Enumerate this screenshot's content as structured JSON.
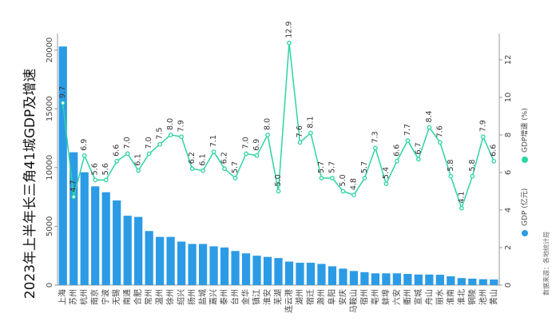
{
  "chart_data": {
    "type": "bar",
    "title": "2023年上半年长三角41城GDP及增速",
    "source": "数据来源：各地统计局",
    "categories": [
      "上海",
      "苏州",
      "杭州",
      "南京",
      "宁波",
      "无锡",
      "南通",
      "合肥",
      "常州",
      "温州",
      "徐州",
      "绍兴",
      "扬州",
      "盐城",
      "嘉兴",
      "泰州",
      "台州",
      "金华",
      "镇江",
      "淮安",
      "芜湖",
      "连云港",
      "湖州",
      "宿迁",
      "滁州",
      "阜阳",
      "安庆",
      "马鞍山",
      "宿州",
      "亳州",
      "蚌埠",
      "六安",
      "衢州",
      "宣城",
      "舟山",
      "丽水",
      "淮南",
      "淮北",
      "铜陵",
      "池州",
      "黄山"
    ],
    "series": [
      {
        "name": "GDP (亿元)",
        "color": "#2c9be6",
        "values": [
          20300,
          11300,
          9600,
          8400,
          7900,
          7200,
          5900,
          5800,
          4600,
          4100,
          4100,
          3700,
          3500,
          3500,
          3300,
          3200,
          2900,
          2700,
          2500,
          2400,
          2300,
          2000,
          1900,
          1900,
          1800,
          1600,
          1400,
          1200,
          1100,
          1000,
          1000,
          1000,
          950,
          900,
          900,
          880,
          750,
          600,
          550,
          500,
          480
        ]
      },
      {
        "name": "GDP增速 (%)",
        "color": "#2ed4a3",
        "type": "line",
        "axis": "y2",
        "values": [
          9.7,
          4.7,
          6.9,
          5.6,
          5.6,
          6.6,
          7.0,
          6.1,
          7.0,
          7.5,
          8.0,
          7.9,
          6.2,
          6.1,
          7.1,
          6.2,
          5.7,
          7.0,
          6.9,
          8.0,
          5.0,
          12.9,
          7.6,
          8.1,
          5.7,
          5.7,
          5.0,
          4.8,
          5.7,
          7.3,
          5.4,
          6.6,
          7.7,
          6.7,
          8.4,
          7.6,
          5.8,
          4.1,
          5.8,
          7.9,
          6.6
        ],
        "value_labels": [
          "9.7",
          "4.7",
          "6.9",
          "5.6",
          "5.6",
          "6.6",
          "7.0",
          "6.1",
          "7.0",
          "7.5",
          "8.0",
          "7.9",
          "6.2",
          "6.1",
          "7.1",
          "6.2",
          "5.7",
          "7.0",
          "6.9",
          "8.0",
          "5.0",
          "12.9",
          "7.6",
          "8.1",
          "5.7",
          "5.7",
          "5.0",
          "4.8",
          "5.7",
          "7.3",
          "5.4",
          "6.6",
          "7.7",
          "6.7",
          "8.4",
          "7.6",
          "5.8",
          "4.1",
          "5.8",
          "7.9",
          "6.6"
        ]
      }
    ],
    "ylim": [
      0,
      21400
    ],
    "yticks": [
      0,
      5000,
      10000,
      15000,
      20000
    ],
    "y2lim": [
      0,
      13.4
    ],
    "y2ticks": [
      0,
      2,
      4,
      6,
      8,
      10,
      12
    ]
  }
}
